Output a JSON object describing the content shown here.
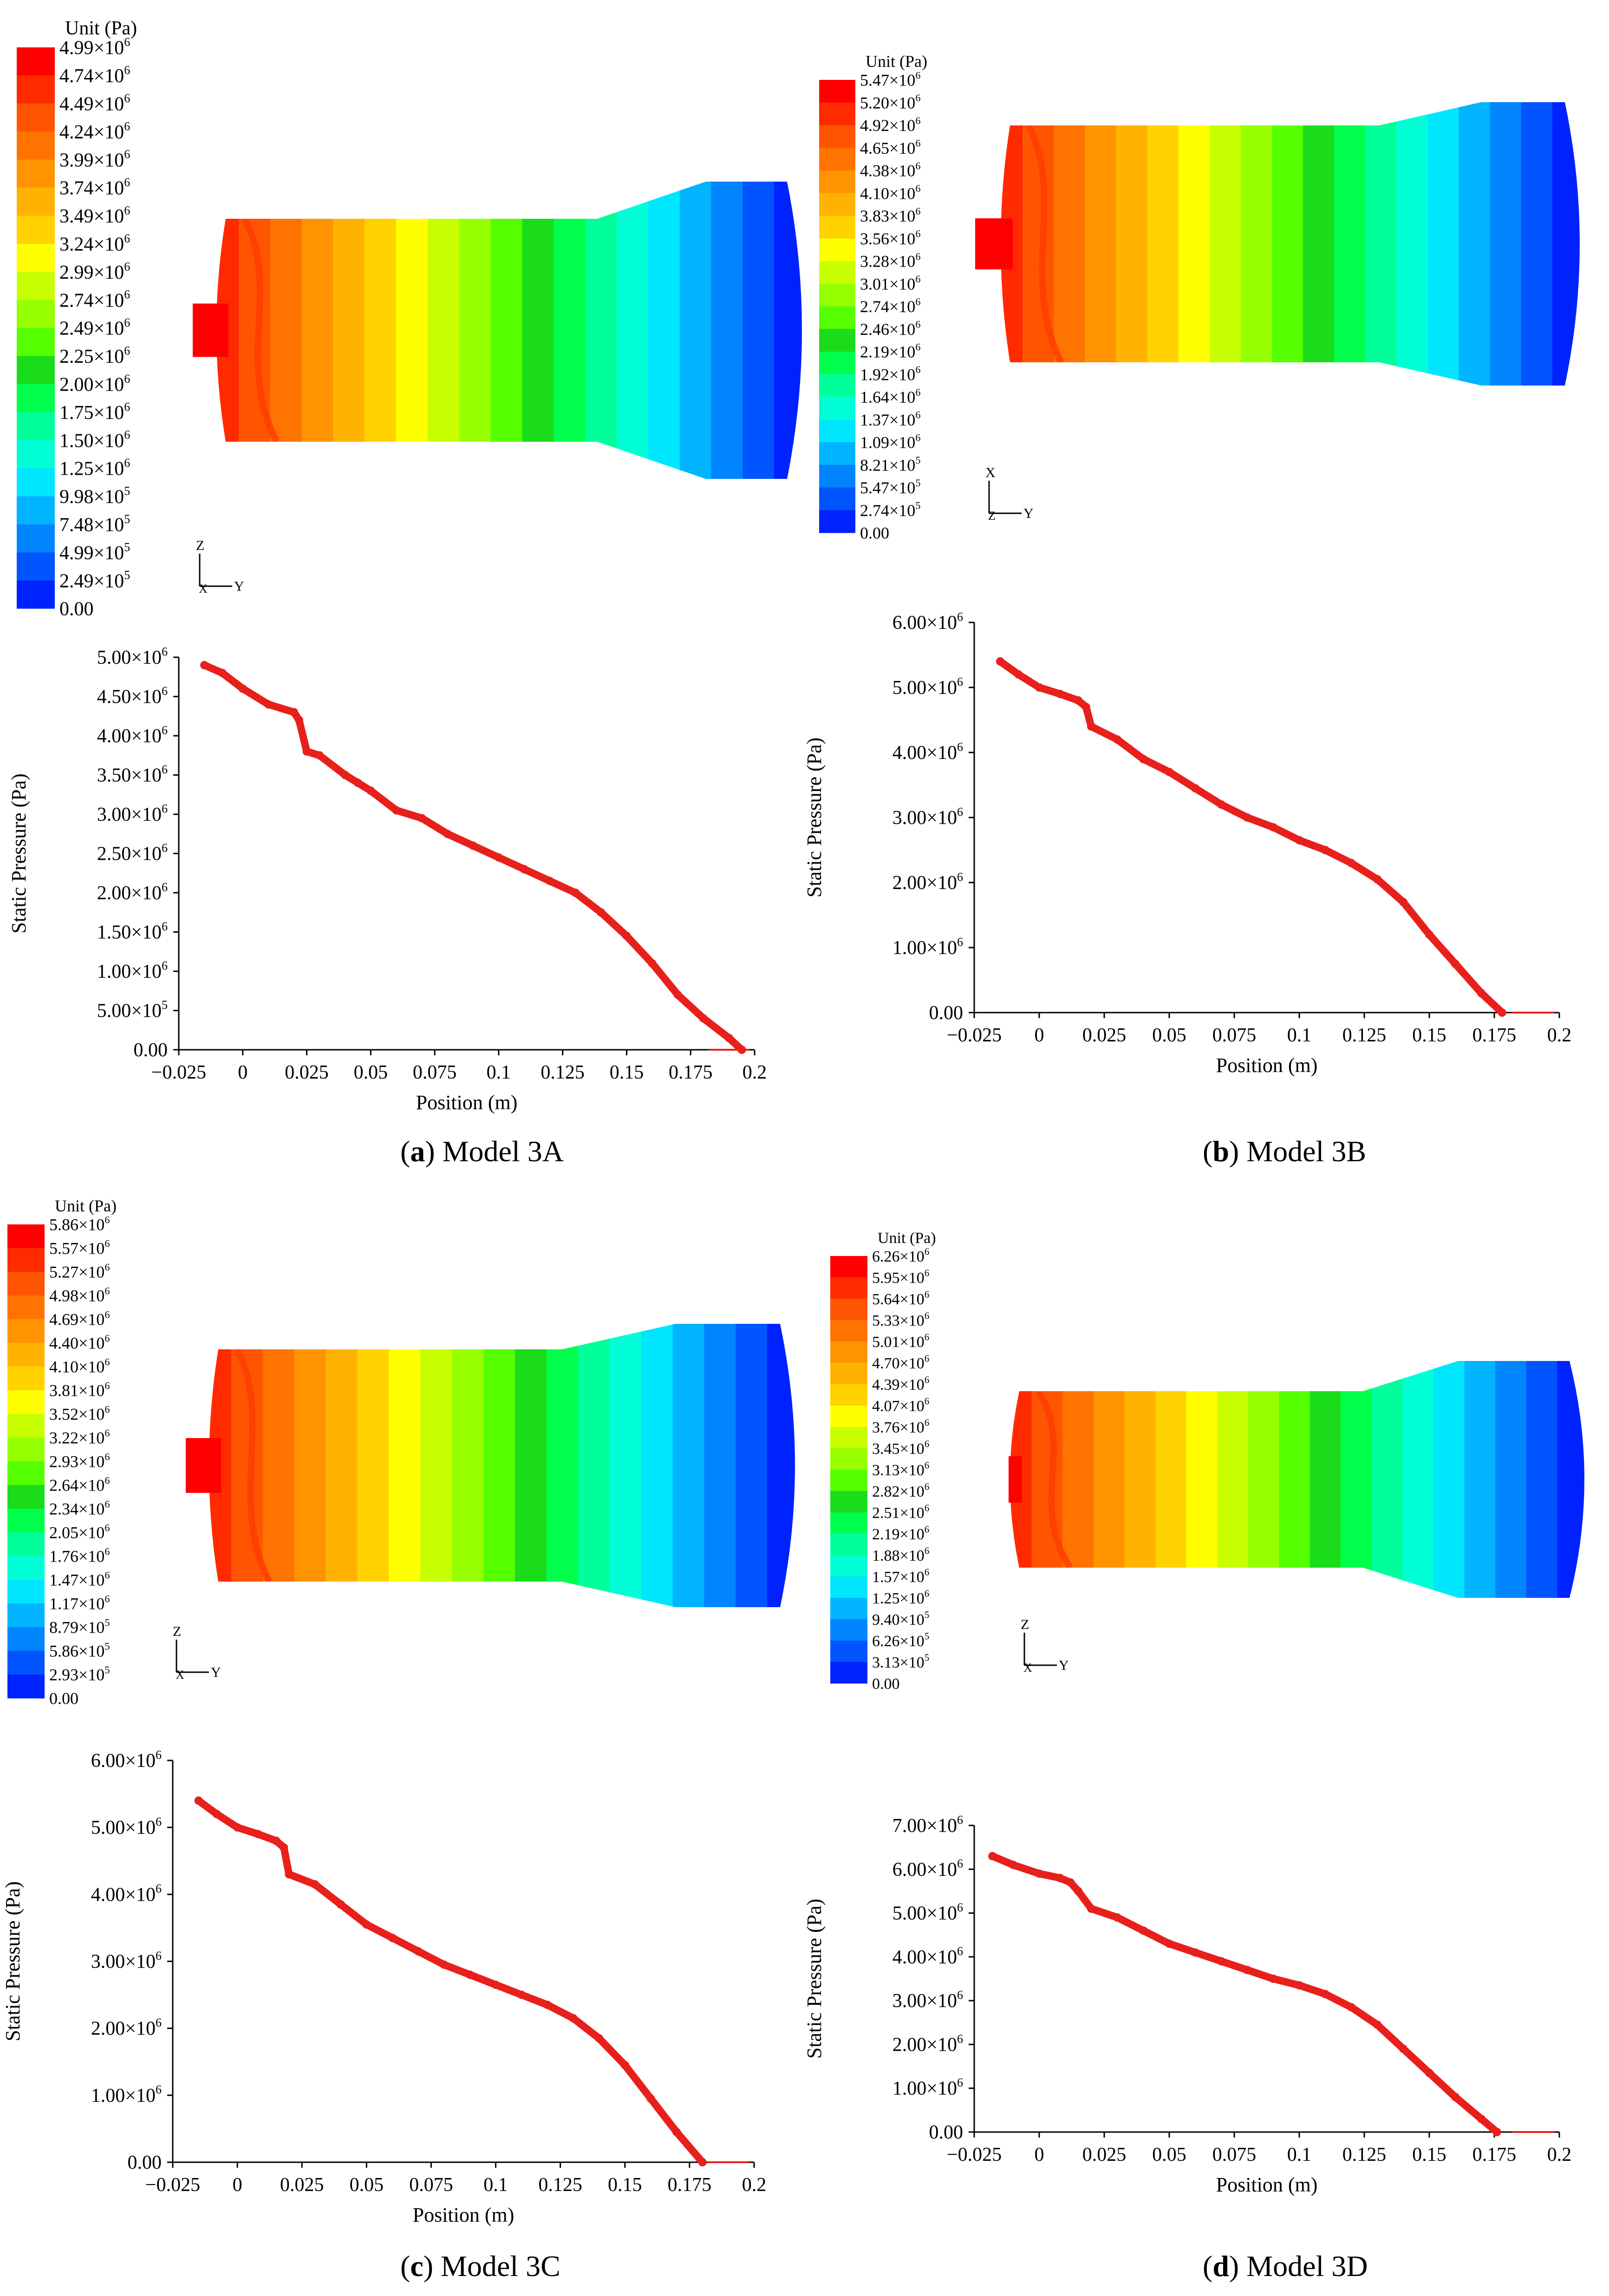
{
  "panels": [
    {
      "id": "3A",
      "caption": {
        "letter": "a",
        "text": "Model 3A"
      },
      "legend": {
        "title": "Unit (Pa)",
        "labels": [
          [
            "4.99",
            "×10",
            "6"
          ],
          [
            "4.74",
            "×10",
            "6"
          ],
          [
            "4.49",
            "×10",
            "6"
          ],
          [
            "4.24",
            "×10",
            "6"
          ],
          [
            "3.99",
            "×10",
            "6"
          ],
          [
            "3.74",
            "×10",
            "6"
          ],
          [
            "3.49",
            "×10",
            "6"
          ],
          [
            "3.24",
            "×10",
            "6"
          ],
          [
            "2.99",
            "×10",
            "6"
          ],
          [
            "2.74",
            "×10",
            "6"
          ],
          [
            "2.49",
            "×10",
            "6"
          ],
          [
            "2.25",
            "×10",
            "6"
          ],
          [
            "2.00",
            "×10",
            "6"
          ],
          [
            "1.75",
            "×10",
            "6"
          ],
          [
            "1.50",
            "×10",
            "6"
          ],
          [
            "1.25",
            "×10",
            "6"
          ],
          [
            "9.98",
            "×10",
            "5"
          ],
          [
            "7.48",
            "×10",
            "5"
          ],
          [
            "4.99",
            "×10",
            "5"
          ],
          [
            "2.49",
            "×10",
            "5"
          ],
          [
            "0.00",
            "",
            ""
          ]
        ]
      },
      "axes_triad": {
        "up": "Z",
        "right": "Y",
        "center": "X"
      },
      "chart_data": {
        "type": "line",
        "xlabel": "Position (m)",
        "ylabel": "Static Pressure (Pa)",
        "xlim": [
          -0.025,
          0.2
        ],
        "ylim": [
          0,
          5000000
        ],
        "x_ticks": [
          "−0.025",
          "0",
          "0.025",
          "0.05",
          "0.075",
          "0.1",
          "0.125",
          "0.15",
          "0.175",
          "0.2"
        ],
        "y_ticks": [
          [
            "0.00",
            "",
            ""
          ],
          [
            "5.00",
            "×10",
            "5"
          ],
          [
            "1.00",
            "×10",
            "6"
          ],
          [
            "1.50",
            "×10",
            "6"
          ],
          [
            "2.00",
            "×10",
            "6"
          ],
          [
            "2.50",
            "×10",
            "6"
          ],
          [
            "3.00",
            "×10",
            "6"
          ],
          [
            "3.50",
            "×10",
            "6"
          ],
          [
            "4.00",
            "×10",
            "6"
          ],
          [
            "4.50",
            "×10",
            "6"
          ],
          [
            "5.00",
            "×10",
            "6"
          ]
        ],
        "series": [
          {
            "name": "Static Pressure",
            "color": "#e8201c",
            "x": [
              -0.015,
              -0.008,
              0.0,
              0.01,
              0.02,
              0.022,
              0.025,
              0.03,
              0.04,
              0.045,
              0.05,
              0.06,
              0.07,
              0.08,
              0.09,
              0.1,
              0.11,
              0.12,
              0.13,
              0.14,
              0.15,
              0.16,
              0.17,
              0.18,
              0.19,
              0.195
            ],
            "y": [
              4900000,
              4800000,
              4600000,
              4400000,
              4300000,
              4200000,
              3800000,
              3750000,
              3500000,
              3400000,
              3300000,
              3050000,
              2950000,
              2750000,
              2600000,
              2450000,
              2300000,
              2150000,
              2000000,
              1750000,
              1450000,
              1100000,
              700000,
              400000,
              150000,
              0
            ]
          }
        ]
      }
    },
    {
      "id": "3B",
      "caption": {
        "letter": "b",
        "text": "Model 3B"
      },
      "legend": {
        "title": "Unit (Pa)",
        "labels": [
          [
            "5.47",
            "×10",
            "6"
          ],
          [
            "5.20",
            "×10",
            "6"
          ],
          [
            "4.92",
            "×10",
            "6"
          ],
          [
            "4.65",
            "×10",
            "6"
          ],
          [
            "4.38",
            "×10",
            "6"
          ],
          [
            "4.10",
            "×10",
            "6"
          ],
          [
            "3.83",
            "×10",
            "6"
          ],
          [
            "3.56",
            "×10",
            "6"
          ],
          [
            "3.28",
            "×10",
            "6"
          ],
          [
            "3.01",
            "×10",
            "6"
          ],
          [
            "2.74",
            "×10",
            "6"
          ],
          [
            "2.46",
            "×10",
            "6"
          ],
          [
            "2.19",
            "×10",
            "6"
          ],
          [
            "1.92",
            "×10",
            "6"
          ],
          [
            "1.64",
            "×10",
            "6"
          ],
          [
            "1.37",
            "×10",
            "6"
          ],
          [
            "1.09",
            "×10",
            "6"
          ],
          [
            "8.21",
            "×10",
            "5"
          ],
          [
            "5.47",
            "×10",
            "5"
          ],
          [
            "2.74",
            "×10",
            "5"
          ],
          [
            "0.00",
            "",
            ""
          ]
        ]
      },
      "axes_triad": {
        "up": "X",
        "right": "Y",
        "center": "Z"
      },
      "chart_data": {
        "type": "line",
        "xlabel": "Position (m)",
        "ylabel": "Static Pressure (Pa)",
        "xlim": [
          -0.025,
          0.2
        ],
        "ylim": [
          0,
          6000000
        ],
        "x_ticks": [
          "−0.025",
          "0",
          "0.025",
          "0.05",
          "0.075",
          "0.1",
          "0.125",
          "0.15",
          "0.175",
          "0.2"
        ],
        "y_ticks": [
          [
            "0.00",
            "",
            ""
          ],
          [
            "1.00",
            "×10",
            "6"
          ],
          [
            "2.00",
            "×10",
            "6"
          ],
          [
            "3.00",
            "×10",
            "6"
          ],
          [
            "4.00",
            "×10",
            "6"
          ],
          [
            "5.00",
            "×10",
            "6"
          ],
          [
            "6.00",
            "×10",
            "6"
          ]
        ],
        "series": [
          {
            "name": "Static Pressure",
            "color": "#e8201c",
            "x": [
              -0.015,
              -0.008,
              0.0,
              0.008,
              0.015,
              0.018,
              0.02,
              0.03,
              0.04,
              0.05,
              0.06,
              0.07,
              0.08,
              0.09,
              0.1,
              0.11,
              0.12,
              0.13,
              0.14,
              0.15,
              0.16,
              0.17,
              0.178
            ],
            "y": [
              5400000,
              5200000,
              5000000,
              4900000,
              4800000,
              4700000,
              4400000,
              4200000,
              3900000,
              3700000,
              3450000,
              3200000,
              3000000,
              2850000,
              2650000,
              2500000,
              2300000,
              2050000,
              1700000,
              1200000,
              750000,
              300000,
              0
            ]
          }
        ]
      }
    },
    {
      "id": "3C",
      "caption": {
        "letter": "c",
        "text": "Model 3C"
      },
      "legend": {
        "title": "Unit (Pa)",
        "labels": [
          [
            "5.86",
            "×10",
            "6"
          ],
          [
            "5.57",
            "×10",
            "6"
          ],
          [
            "5.27",
            "×10",
            "6"
          ],
          [
            "4.98",
            "×10",
            "6"
          ],
          [
            "4.69",
            "×10",
            "6"
          ],
          [
            "4.40",
            "×10",
            "6"
          ],
          [
            "4.10",
            "×10",
            "6"
          ],
          [
            "3.81",
            "×10",
            "6"
          ],
          [
            "3.52",
            "×10",
            "6"
          ],
          [
            "3.22",
            "×10",
            "6"
          ],
          [
            "2.93",
            "×10",
            "6"
          ],
          [
            "2.64",
            "×10",
            "6"
          ],
          [
            "2.34",
            "×10",
            "6"
          ],
          [
            "2.05",
            "×10",
            "6"
          ],
          [
            "1.76",
            "×10",
            "6"
          ],
          [
            "1.47",
            "×10",
            "6"
          ],
          [
            "1.17",
            "×10",
            "6"
          ],
          [
            "8.79",
            "×10",
            "5"
          ],
          [
            "5.86",
            "×10",
            "5"
          ],
          [
            "2.93",
            "×10",
            "5"
          ],
          [
            "0.00",
            "",
            ""
          ]
        ]
      },
      "axes_triad": {
        "up": "Z",
        "right": "Y",
        "center": "X"
      },
      "chart_data": {
        "type": "line",
        "xlabel": "Position (m)",
        "ylabel": "Static Pressure (Pa)",
        "xlim": [
          -0.025,
          0.2
        ],
        "ylim": [
          0,
          6000000
        ],
        "x_ticks": [
          "−0.025",
          "0",
          "0.025",
          "0.05",
          "0.075",
          "0.1",
          "0.125",
          "0.15",
          "0.175",
          "0.2"
        ],
        "y_ticks": [
          [
            "0.00",
            "",
            ""
          ],
          [
            "1.00",
            "×10",
            "6"
          ],
          [
            "2.00",
            "×10",
            "6"
          ],
          [
            "3.00",
            "×10",
            "6"
          ],
          [
            "4.00",
            "×10",
            "6"
          ],
          [
            "5.00",
            "×10",
            "6"
          ],
          [
            "6.00",
            "×10",
            "6"
          ]
        ],
        "series": [
          {
            "name": "Static Pressure",
            "color": "#e8201c",
            "x": [
              -0.015,
              -0.008,
              0.0,
              0.008,
              0.015,
              0.018,
              0.02,
              0.03,
              0.04,
              0.05,
              0.06,
              0.07,
              0.08,
              0.09,
              0.1,
              0.11,
              0.12,
              0.13,
              0.14,
              0.15,
              0.16,
              0.17,
              0.18
            ],
            "y": [
              5400000,
              5200000,
              5000000,
              4900000,
              4800000,
              4700000,
              4300000,
              4150000,
              3850000,
              3550000,
              3350000,
              3150000,
              2950000,
              2800000,
              2650000,
              2500000,
              2350000,
              2150000,
              1850000,
              1450000,
              950000,
              450000,
              0
            ]
          }
        ]
      }
    },
    {
      "id": "3D",
      "caption": {
        "letter": "d",
        "text": "Model 3D"
      },
      "legend": {
        "title": "Unit (Pa)",
        "labels": [
          [
            "6.26",
            "×10",
            "6"
          ],
          [
            "5.95",
            "×10",
            "6"
          ],
          [
            "5.64",
            "×10",
            "6"
          ],
          [
            "5.33",
            "×10",
            "6"
          ],
          [
            "5.01",
            "×10",
            "6"
          ],
          [
            "4.70",
            "×10",
            "6"
          ],
          [
            "4.39",
            "×10",
            "6"
          ],
          [
            "4.07",
            "×10",
            "6"
          ],
          [
            "3.76",
            "×10",
            "6"
          ],
          [
            "3.45",
            "×10",
            "6"
          ],
          [
            "3.13",
            "×10",
            "6"
          ],
          [
            "2.82",
            "×10",
            "6"
          ],
          [
            "2.51",
            "×10",
            "6"
          ],
          [
            "2.19",
            "×10",
            "6"
          ],
          [
            "1.88",
            "×10",
            "6"
          ],
          [
            "1.57",
            "×10",
            "6"
          ],
          [
            "1.25",
            "×10",
            "6"
          ],
          [
            "9.40",
            "×10",
            "5"
          ],
          [
            "6.26",
            "×10",
            "5"
          ],
          [
            "3.13",
            "×10",
            "5"
          ],
          [
            "0.00",
            "",
            ""
          ]
        ]
      },
      "axes_triad": {
        "up": "Z",
        "right": "Y",
        "center": "X"
      },
      "chart_data": {
        "type": "line",
        "xlabel": "Position (m)",
        "ylabel": "Static Pressure (Pa)",
        "xlim": [
          -0.025,
          0.2
        ],
        "ylim": [
          0,
          7000000
        ],
        "x_ticks": [
          "−0.025",
          "0",
          "0.025",
          "0.05",
          "0.075",
          "0.1",
          "0.125",
          "0.15",
          "0.175",
          "0.2"
        ],
        "y_ticks": [
          [
            "0.00",
            "",
            ""
          ],
          [
            "1.00",
            "×10",
            "6"
          ],
          [
            "2.00",
            "×10",
            "6"
          ],
          [
            "3.00",
            "×10",
            "6"
          ],
          [
            "4.00",
            "×10",
            "6"
          ],
          [
            "5.00",
            "×10",
            "6"
          ],
          [
            "6.00",
            "×10",
            "6"
          ],
          [
            "7.00",
            "×10",
            "6"
          ]
        ],
        "series": [
          {
            "name": "Static Pressure",
            "color": "#e8201c",
            "x": [
              -0.018,
              -0.01,
              0.0,
              0.008,
              0.012,
              0.015,
              0.02,
              0.03,
              0.04,
              0.05,
              0.06,
              0.07,
              0.08,
              0.09,
              0.1,
              0.11,
              0.12,
              0.13,
              0.14,
              0.15,
              0.16,
              0.17,
              0.176
            ],
            "y": [
              6300000,
              6100000,
              5900000,
              5800000,
              5700000,
              5500000,
              5100000,
              4900000,
              4600000,
              4300000,
              4100000,
              3900000,
              3700000,
              3500000,
              3350000,
              3150000,
              2850000,
              2450000,
              1900000,
              1350000,
              800000,
              300000,
              0
            ]
          }
        ]
      }
    }
  ]
}
